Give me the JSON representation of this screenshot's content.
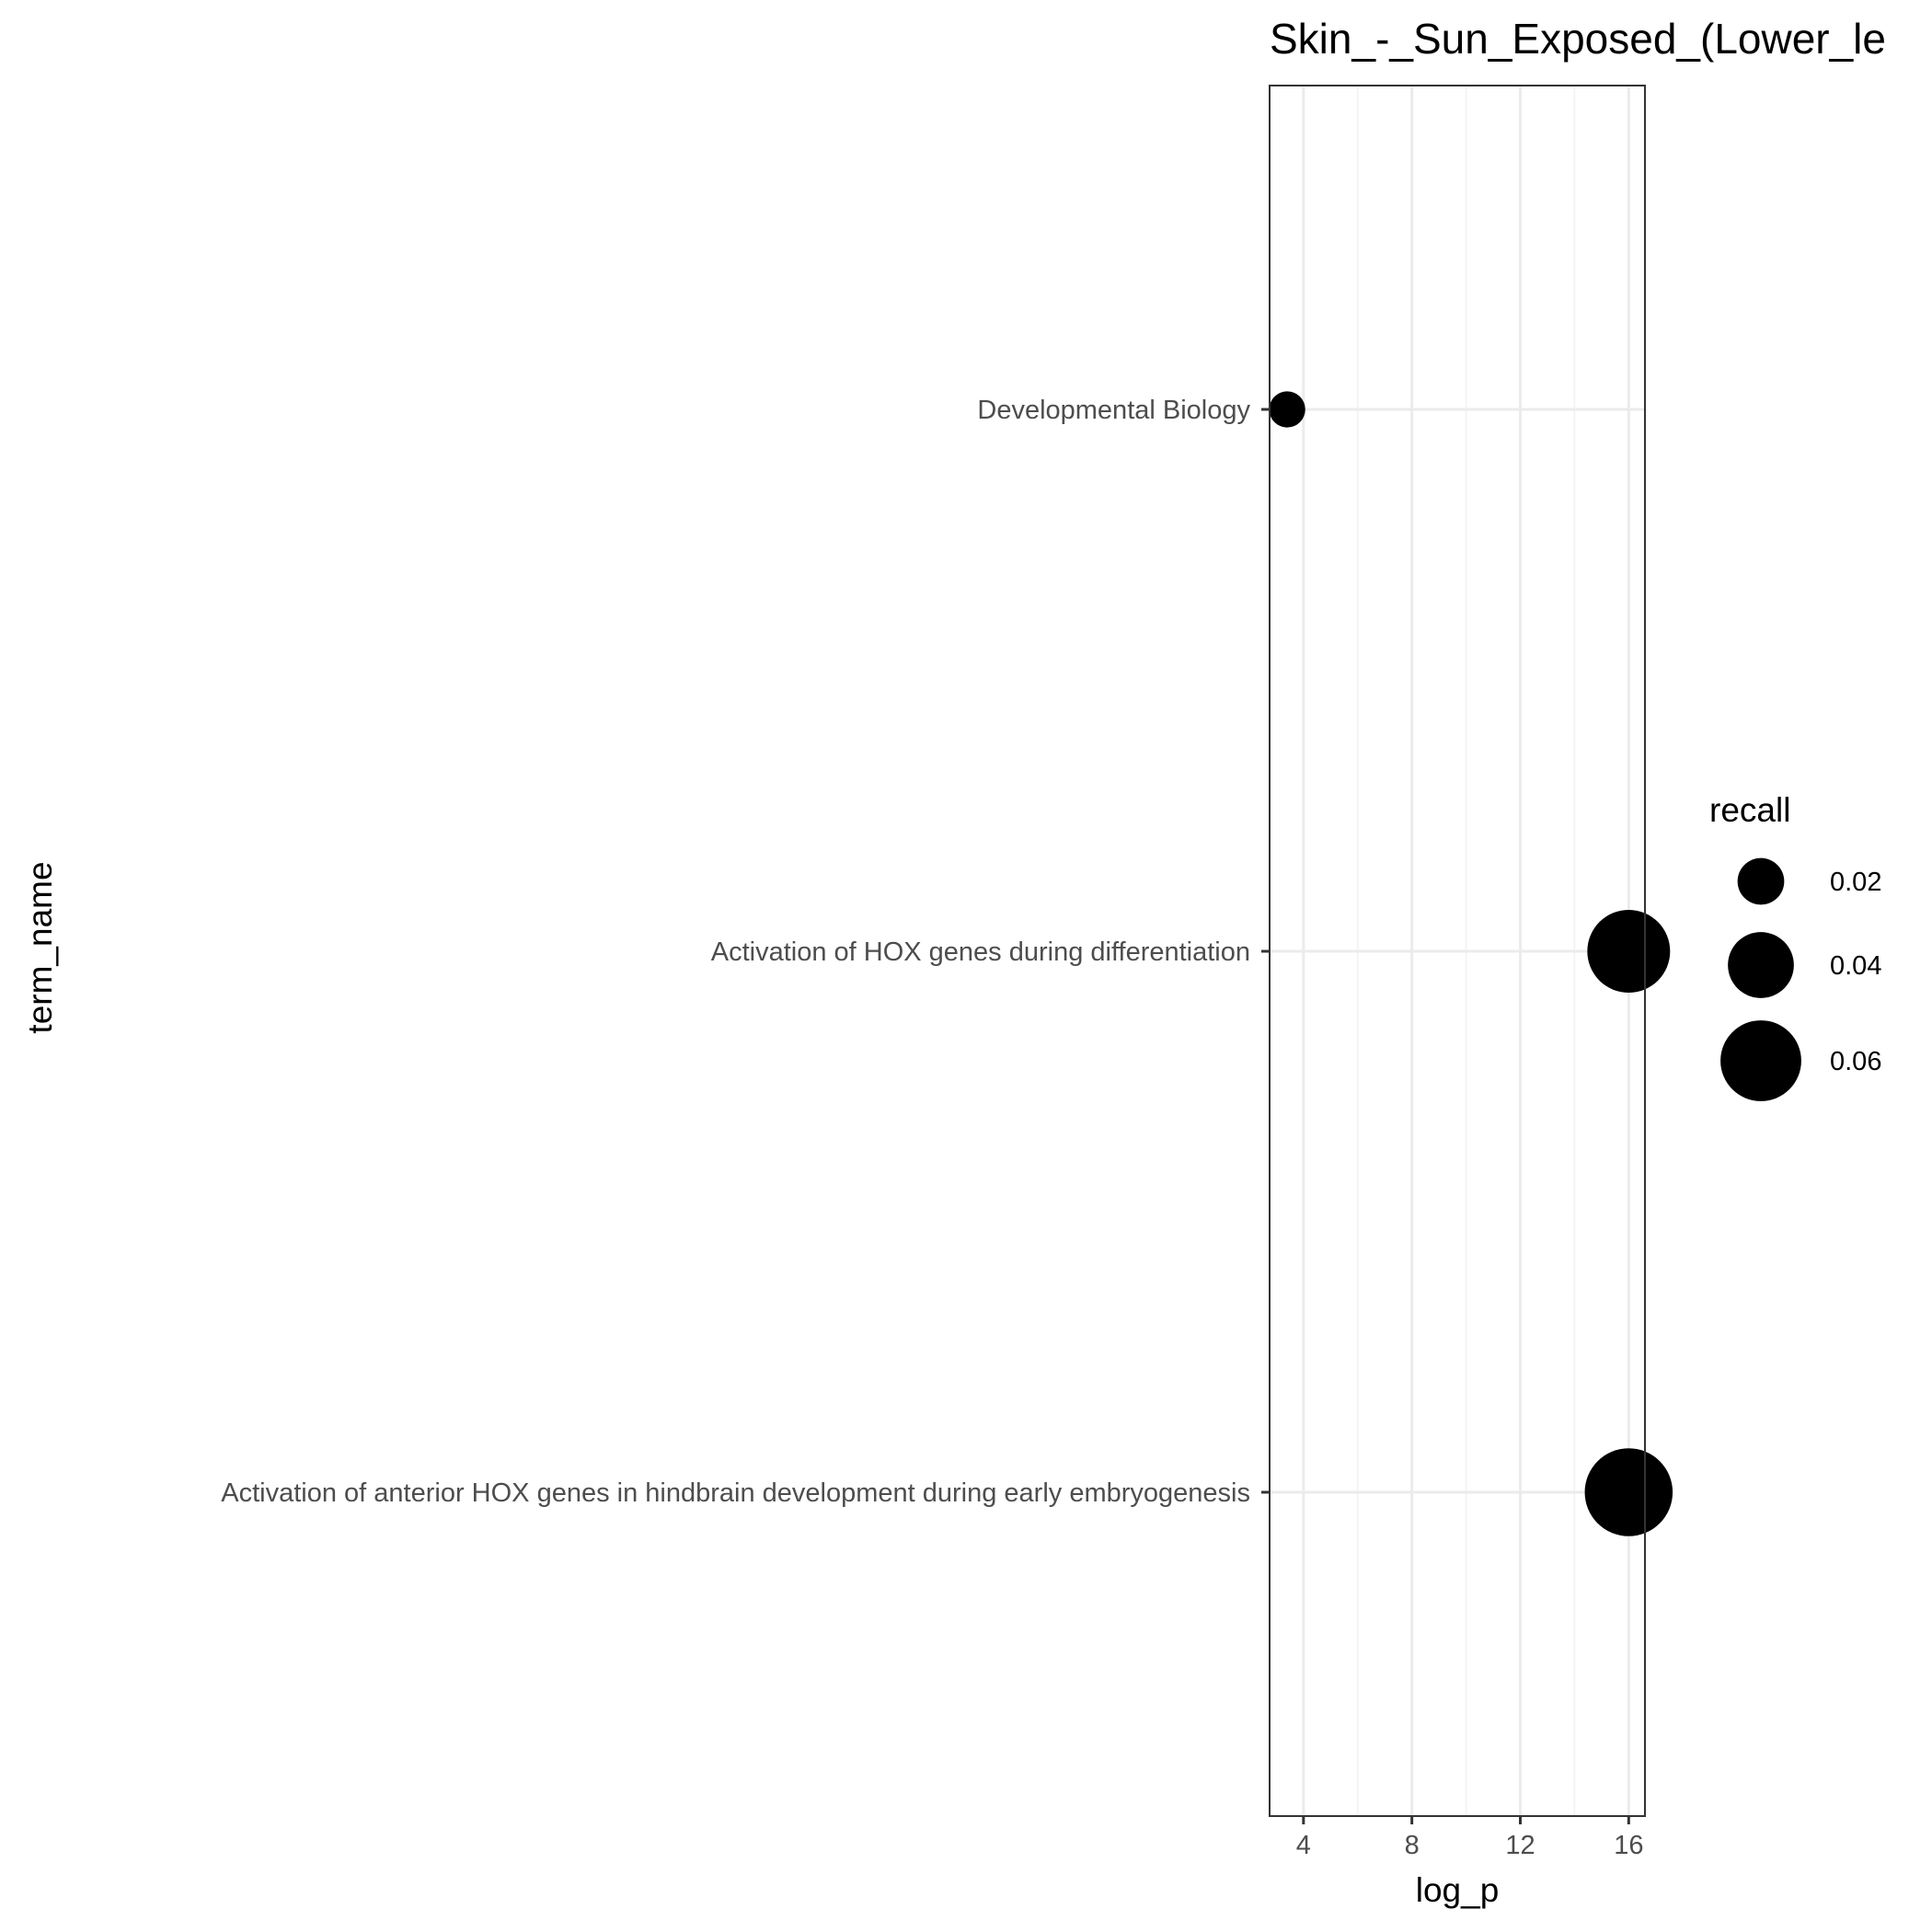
{
  "chart_data": {
    "type": "scatter",
    "title": "Skin_-_Sun_Exposed_(Lower_le",
    "xlabel": "log_p",
    "ylabel": "term_name",
    "xlim": [
      2.75,
      16.6
    ],
    "x_ticks": [
      4,
      8,
      12,
      16
    ],
    "grid": true,
    "categories": [
      "Developmental Biology",
      "Activation of HOX genes during differentiation",
      "Activation of anterior HOX genes in hindbrain development during early embryogenesis"
    ],
    "series": [
      {
        "points": [
          {
            "term_name": "Developmental Biology",
            "log_p": 3.4,
            "recall": 0.012
          },
          {
            "term_name": "Activation of HOX genes during differentiation",
            "log_p": 16.0,
            "recall": 0.063
          },
          {
            "term_name": "Activation of anterior HOX genes in hindbrain development during early embryogenesis",
            "log_p": 16.0,
            "recall": 0.071
          }
        ]
      }
    ],
    "legend": {
      "title": "recall",
      "position": "right",
      "entries": [
        {
          "label": "0.02",
          "value": 0.02
        },
        {
          "label": "0.04",
          "value": 0.04
        },
        {
          "label": "0.06",
          "value": 0.06
        }
      ]
    },
    "colors": {
      "point": "#000000",
      "panel_border": "#333333",
      "grid_major": "#ebebeb",
      "grid_minor": "#f2f2f2",
      "tick_text": "#4d4d4d"
    }
  }
}
